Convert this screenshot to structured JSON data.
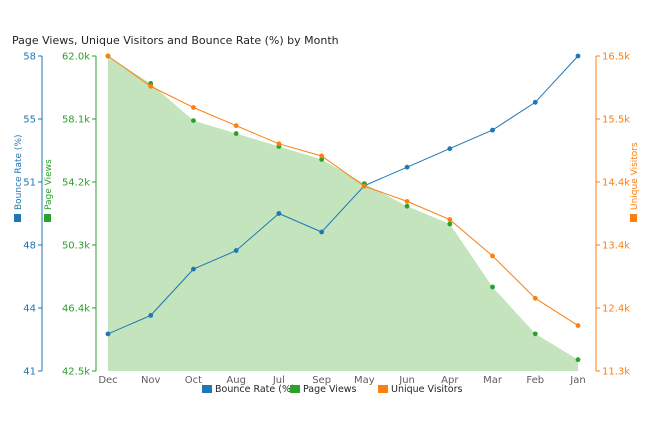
{
  "chart_data": {
    "type": "line",
    "title": "Page Views, Unique Visitors and Bounce Rate (%) by Month",
    "categories": [
      "Dec",
      "Nov",
      "Oct",
      "Aug",
      "Jul",
      "Sep",
      "May",
      "Jun",
      "Apr",
      "Mar",
      "Feb",
      "Jan"
    ],
    "series": [
      {
        "name": "Bounce Rate (%)",
        "type": "line",
        "axis": "bounce",
        "color": "#1f77b4",
        "values": [
          43.0,
          44.0,
          46.5,
          47.5,
          49.5,
          48.5,
          51.0,
          52.0,
          53.0,
          54.0,
          55.5,
          58.0
        ]
      },
      {
        "name": "Page Views",
        "type": "area",
        "axis": "pageviews",
        "color": "#2ca02c",
        "fill": "#c3e4bd",
        "values": [
          62000,
          60300,
          58000,
          57200,
          56400,
          55600,
          54100,
          52700,
          51600,
          47700,
          44800,
          43200
        ]
      },
      {
        "name": "Unique Visitors",
        "type": "line",
        "axis": "visitors",
        "color": "#ff7f0e",
        "values": [
          16500,
          16000,
          15650,
          15350,
          15050,
          14850,
          14350,
          14100,
          13800,
          13200,
          12500,
          12050
        ]
      }
    ],
    "axes": {
      "bounce": {
        "title": "Bounce Rate (%)",
        "color": "#1f77b4",
        "ticks": [
          "58",
          "55",
          "51",
          "48",
          "44",
          "41"
        ],
        "range": [
          41,
          58
        ]
      },
      "pageviews": {
        "title": "Page Views",
        "color": "#2ca02c",
        "ticks": [
          "62.0k",
          "58.1k",
          "54.2k",
          "50.3k",
          "46.4k",
          "42.5k"
        ],
        "range": [
          42500,
          62000
        ]
      },
      "visitors": {
        "title": "Unique Visitors",
        "color": "#ff7f0e",
        "ticks": [
          "16.5k",
          "15.5k",
          "14.4k",
          "13.4k",
          "12.4k",
          "11.3k"
        ],
        "range": [
          11300,
          16500
        ]
      }
    },
    "grid": false,
    "legend_position": "bottom"
  }
}
